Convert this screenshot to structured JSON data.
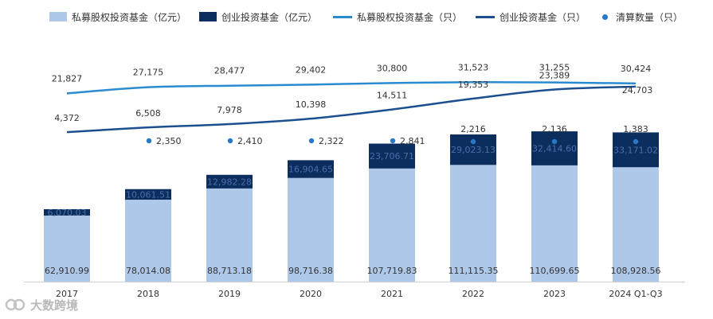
{
  "legend": {
    "pe_amount": "私募股权投资基金（亿元）",
    "vc_amount": "创业投资基金（亿元）",
    "pe_count": "私募股权投资基金（只）",
    "vc_count": "创业投资基金（只）",
    "liquidation": "清算数量（只）"
  },
  "watermark": {
    "text": "大数跨境"
  },
  "colors": {
    "pe_bar": "#aec8ea",
    "vc_bar": "#0b2e5f",
    "pe_line": "#2b8bd0",
    "vc_line": "#1b4f8f",
    "dot": "#2878c8",
    "label_dark": "#333333",
    "label_on_dark": "#4a6fa5"
  },
  "chart_data": {
    "type": "bar",
    "categories": [
      "2017",
      "2018",
      "2019",
      "2020",
      "2021",
      "2022",
      "2023",
      "2024 Q1-Q3"
    ],
    "series": [
      {
        "name": "私募股权投资基金（亿元）",
        "type": "bar",
        "stack": "amount",
        "values": [
          62910.99,
          78014.08,
          88713.18,
          98716.38,
          107719.83,
          111115.35,
          110699.65,
          108928.56
        ],
        "labels": [
          "62,910.99",
          "78,014.08",
          "88,713.18",
          "98,716.38",
          "107,719.83",
          "111,115.35",
          "110,699.65",
          "108,928.56"
        ]
      },
      {
        "name": "创业投资基金（亿元）",
        "type": "bar",
        "stack": "amount",
        "values": [
          6070.03,
          10061.51,
          12982.28,
          16904.65,
          23706.71,
          29023.13,
          32414.6,
          33171.02
        ],
        "labels": [
          "6,070.03",
          "10,061.51",
          "12,982.28",
          "16,904.65",
          "23,706.71",
          "29,023.13",
          "32,414.60",
          "33,171.02"
        ]
      },
      {
        "name": "私募股权投资基金（只）",
        "type": "line",
        "values": [
          21827,
          27175,
          28477,
          29402,
          30800,
          31523,
          31255,
          30424
        ],
        "labels": [
          "21,827",
          "27,175",
          "28,477",
          "29,402",
          "30,800",
          "31,523",
          "31,255",
          "30,424"
        ]
      },
      {
        "name": "创业投资基金（只）",
        "type": "line",
        "values": [
          4372,
          6508,
          7978,
          10398,
          14511,
          19353,
          23389,
          24703
        ],
        "labels": [
          "4,372",
          "6,508",
          "7,978",
          "10,398",
          "14,511",
          "19,353",
          "23,389",
          "24,703"
        ]
      },
      {
        "name": "清算数量（只）",
        "type": "scatter",
        "values": [
          null,
          2350,
          2410,
          2322,
          2841,
          2216,
          2136,
          1383
        ],
        "labels": [
          "",
          "2,350",
          "2,410",
          "2,322",
          "2,841",
          "2,216",
          "2,136",
          "1,383"
        ]
      }
    ],
    "legend_position": "top",
    "grid": false
  }
}
